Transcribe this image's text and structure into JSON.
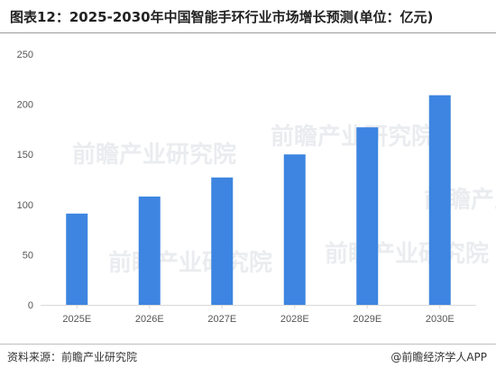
{
  "title": "图表12：2025-2030年中国智能手环行业市场增长预测(单位：亿元)",
  "source": "资料来源：前瞻产业研究院",
  "brand": "@前瞻经济学人APP",
  "watermark": "前瞻产业研究院",
  "colors": {
    "bar": "#3d85e0",
    "grid": "#d9d9d9"
  },
  "chart_data": {
    "type": "bar",
    "categories": [
      "2025E",
      "2026E",
      "2027E",
      "2028E",
      "2029E",
      "2030E"
    ],
    "values": [
      91,
      108,
      127,
      150,
      177,
      209
    ],
    "ylim": [
      0,
      250
    ],
    "yticks": [
      0,
      50,
      100,
      150,
      200,
      250
    ],
    "grid": false,
    "legend": "none"
  }
}
